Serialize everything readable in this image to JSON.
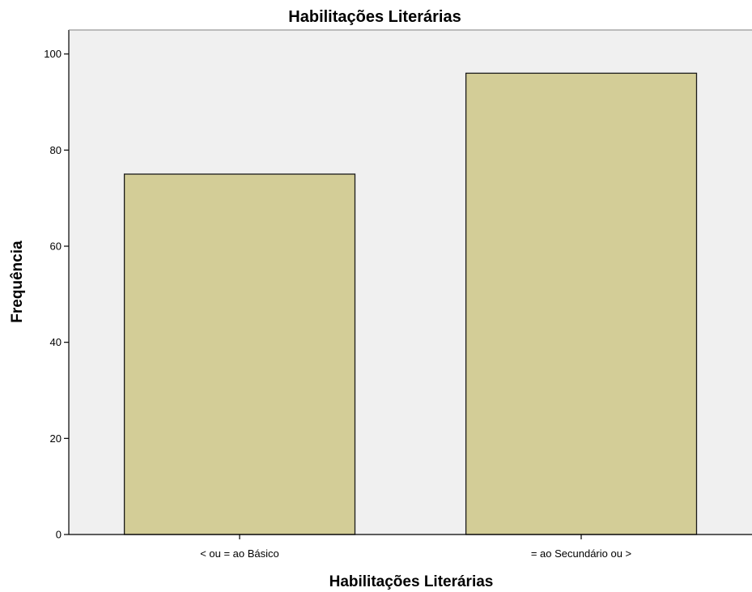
{
  "chart_data": {
    "type": "bar",
    "title": "Habilitações Literárias",
    "xlabel": "Habilitações Literárias",
    "ylabel": "Frequência",
    "categories": [
      "< ou = ao Básico",
      "= ao Secundário ou >"
    ],
    "values": [
      75,
      96
    ],
    "ylim": [
      0,
      105
    ],
    "yticks": [
      0,
      20,
      40,
      60,
      80,
      100
    ],
    "grid": false,
    "legend": "none",
    "colors": {
      "bar_fill": "#d3cd97",
      "bar_stroke": "#1a1a1a",
      "plot_background": "#f0f0f0",
      "axis": "#000000"
    }
  }
}
